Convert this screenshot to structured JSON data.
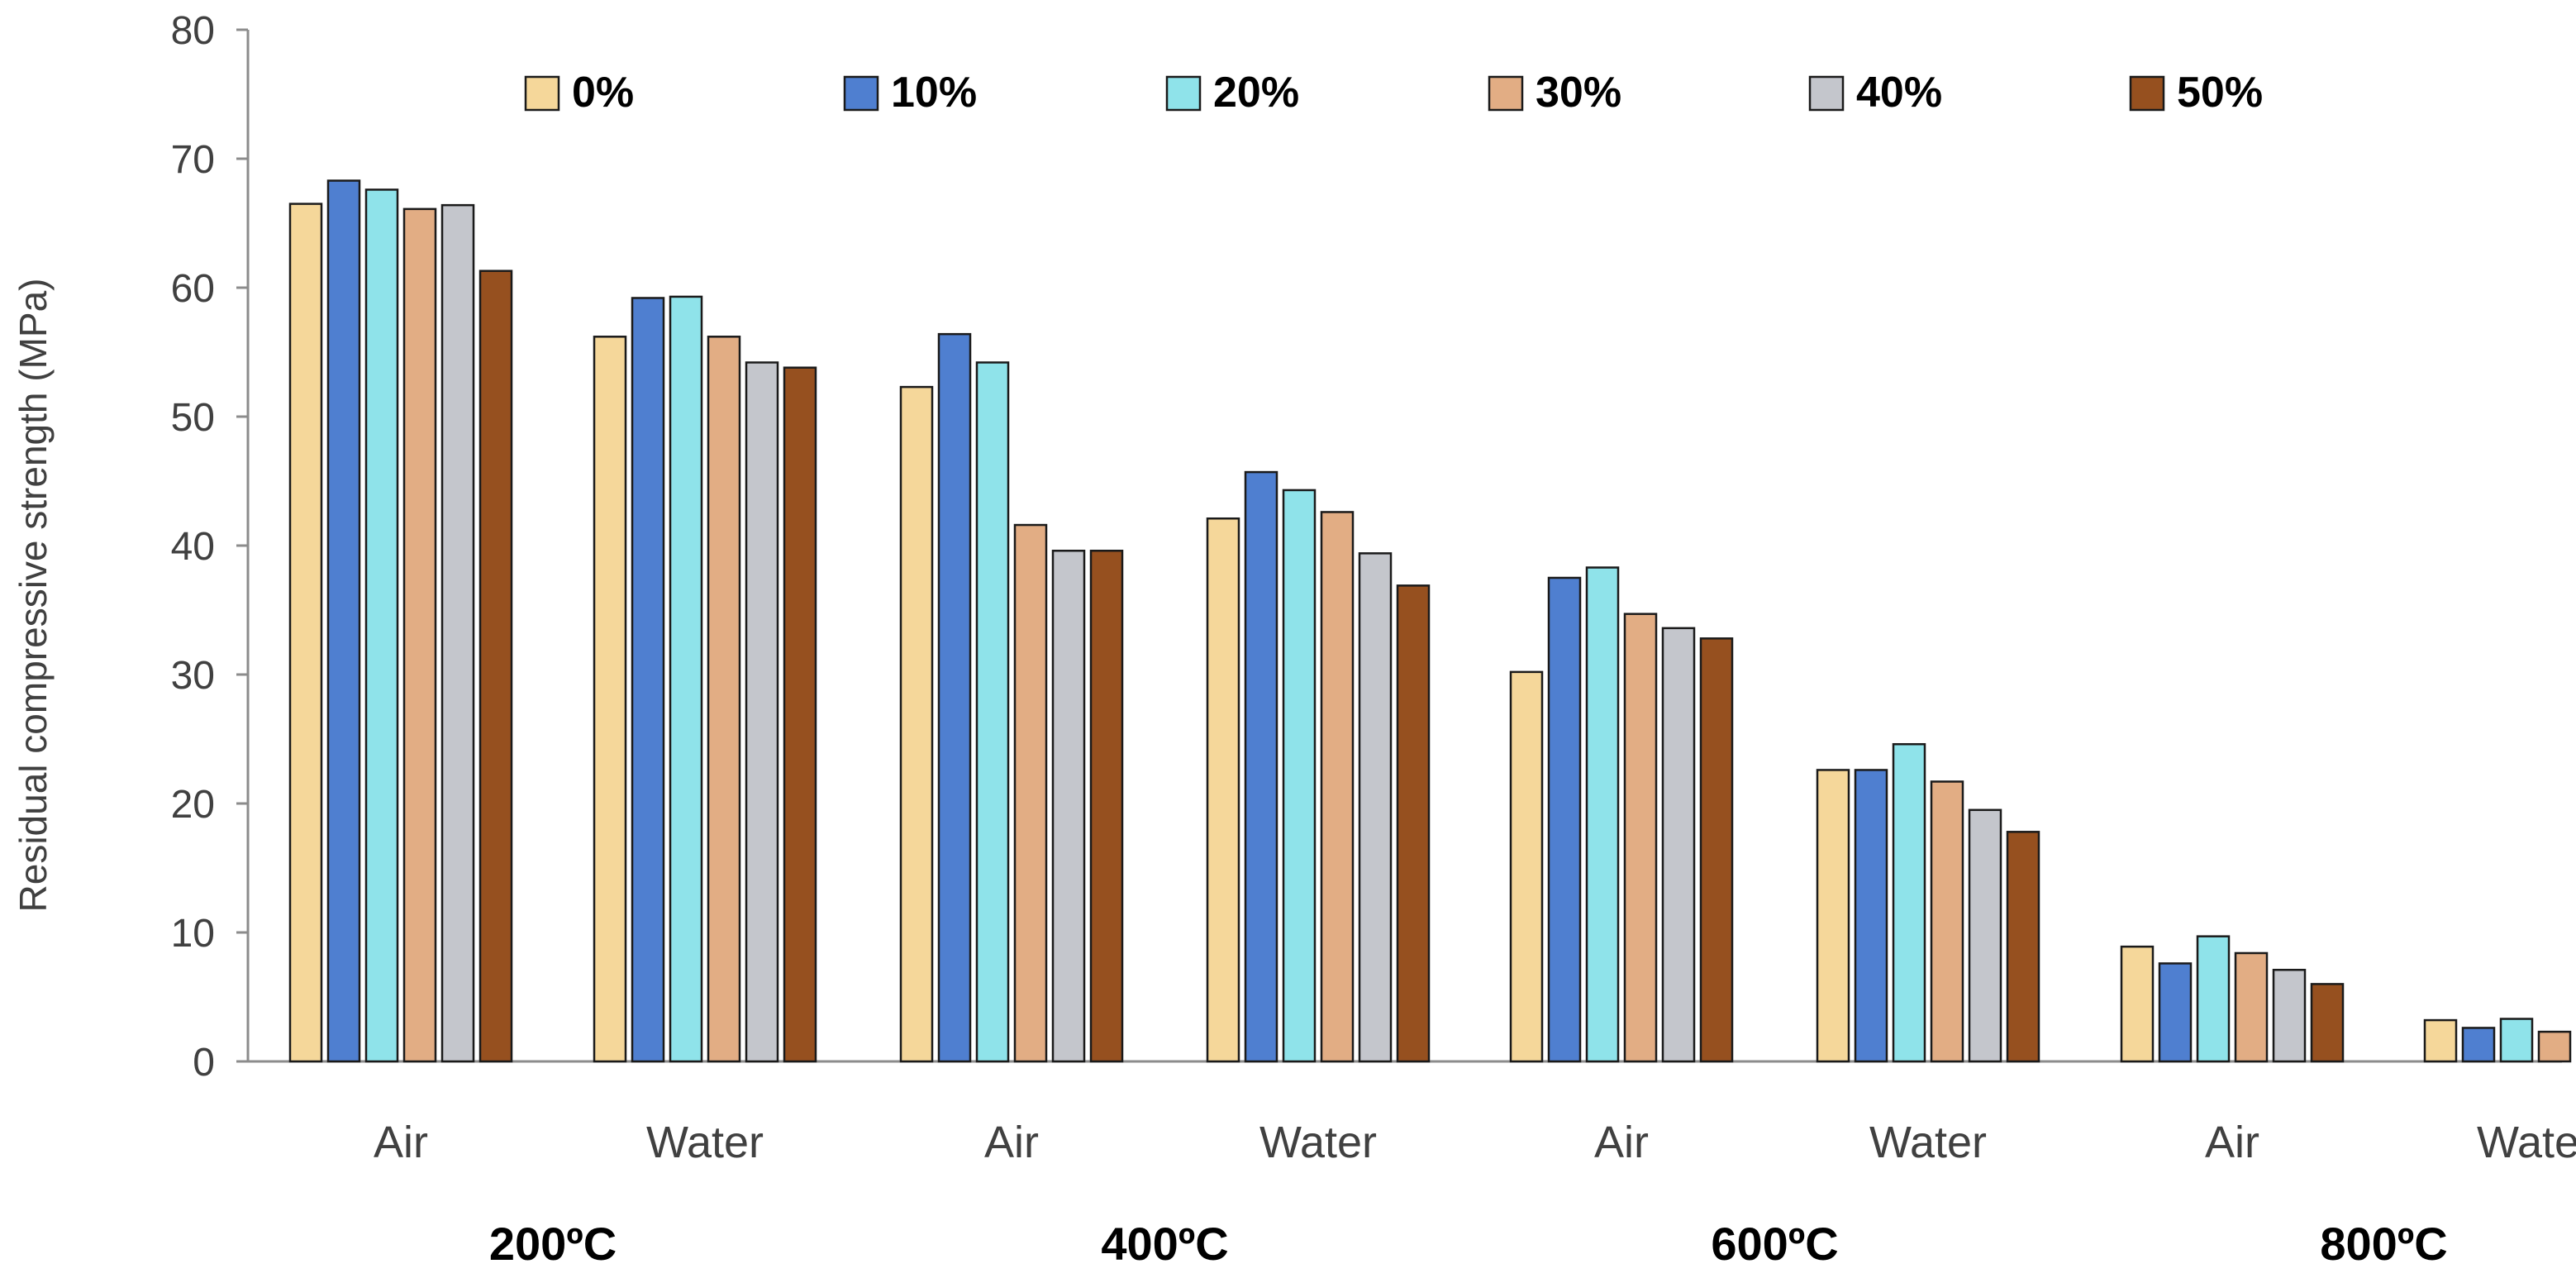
{
  "chart_data": {
    "type": "bar",
    "title": "",
    "ylabel": "Residual compressive strength (MPa)",
    "xlabel": "",
    "ylim": [
      0,
      80
    ],
    "yticks": [
      0,
      10,
      20,
      30,
      40,
      50,
      60,
      70,
      80
    ],
    "ytick_labels": [
      "0",
      "10",
      "20",
      "30",
      "40",
      "50",
      "60",
      "70",
      "80"
    ],
    "categories": [
      "Air",
      "Water",
      "Air",
      "Water",
      "Air",
      "Water",
      "Air",
      "Water"
    ],
    "groups": [
      {
        "label": "200ºC"
      },
      {
        "label": "400ºC"
      },
      {
        "label": "600ºC"
      },
      {
        "label": "800ºC"
      }
    ],
    "legend_position": "top",
    "series": [
      {
        "name": "0%",
        "color": "#f5d79a",
        "values": [
          66.5,
          56.2,
          52.3,
          42.1,
          30.2,
          22.6,
          8.9,
          3.2
        ]
      },
      {
        "name": "10%",
        "color": "#4f7fd0",
        "values": [
          68.3,
          59.2,
          56.4,
          45.7,
          37.5,
          22.6,
          7.6,
          2.6
        ]
      },
      {
        "name": "20%",
        "color": "#8fe3ea",
        "values": [
          67.6,
          59.3,
          54.2,
          44.3,
          38.3,
          24.6,
          9.7,
          3.3
        ]
      },
      {
        "name": "30%",
        "color": "#e2ad84",
        "values": [
          66.1,
          56.2,
          41.6,
          42.6,
          34.7,
          21.7,
          8.4,
          2.3
        ]
      },
      {
        "name": "40%",
        "color": "#c4c6cc",
        "values": [
          66.4,
          54.2,
          39.6,
          39.4,
          33.6,
          19.5,
          7.1,
          null
        ]
      },
      {
        "name": "50%",
        "color": "#96501f",
        "values": [
          61.3,
          53.8,
          39.6,
          36.9,
          32.8,
          17.8,
          6.0,
          null
        ]
      }
    ]
  }
}
